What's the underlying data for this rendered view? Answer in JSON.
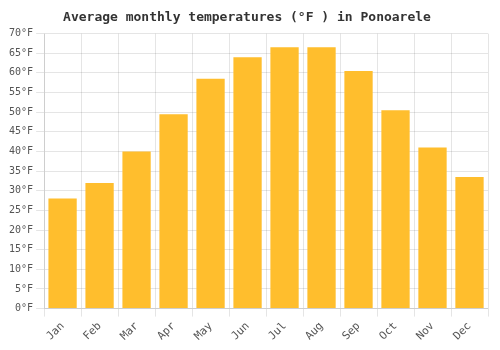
{
  "chart_data": {
    "type": "bar",
    "title": "Average monthly temperatures (°F ) in Ponoarele",
    "categories": [
      "Jan",
      "Feb",
      "Mar",
      "Apr",
      "May",
      "Jun",
      "Jul",
      "Aug",
      "Sep",
      "Oct",
      "Nov",
      "Dec"
    ],
    "values": [
      28,
      32,
      40,
      49.5,
      58.5,
      64,
      66.5,
      66.5,
      60.5,
      50.5,
      41,
      33.5
    ],
    "color": "#FFBE2D",
    "ylim": [
      0,
      70
    ],
    "yticks": [
      {
        "value": 0,
        "label": "0°F"
      },
      {
        "value": 5,
        "label": "5°F"
      },
      {
        "value": 10,
        "label": "10°F"
      },
      {
        "value": 15,
        "label": "15°F"
      },
      {
        "value": 20,
        "label": "20°F"
      },
      {
        "value": 25,
        "label": "25°F"
      },
      {
        "value": 30,
        "label": "30°F"
      },
      {
        "value": 35,
        "label": "35°F"
      },
      {
        "value": 40,
        "label": "40°F"
      },
      {
        "value": 45,
        "label": "45°F"
      },
      {
        "value": 50,
        "label": "50°F"
      },
      {
        "value": 55,
        "label": "55°F"
      },
      {
        "value": 60,
        "label": "60°F"
      },
      {
        "value": 65,
        "label": "65°F"
      },
      {
        "value": 70,
        "label": "70°F"
      }
    ],
    "grid": true
  }
}
